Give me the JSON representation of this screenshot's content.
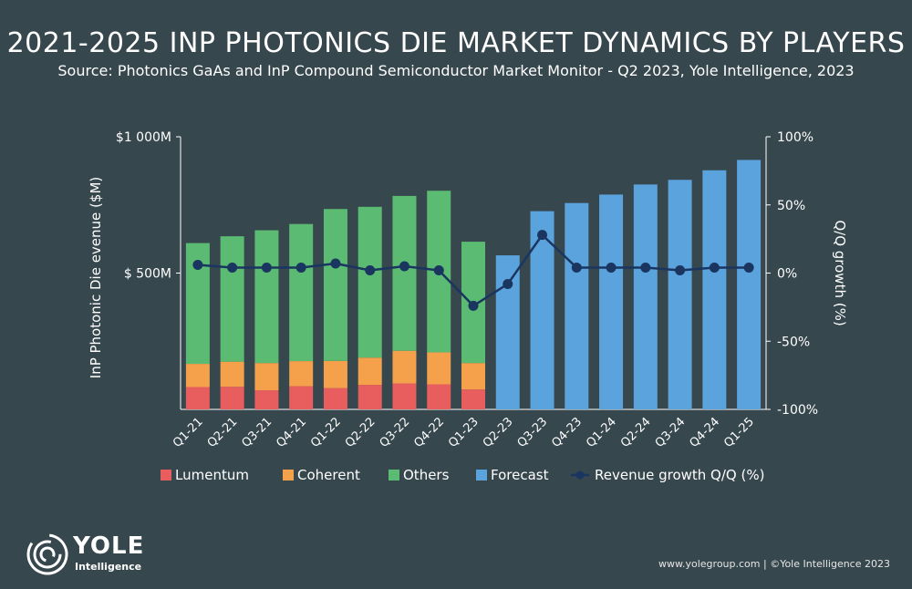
{
  "title": "2021-2025 INP PHOTONICS DIE MARKET DYNAMICS BY PLAYERS",
  "subtitle": "Source: Photonics GaAs and InP Compound Semiconductor Market Monitor - Q2 2023, Yole Intelligence, 2023",
  "logo": {
    "word": "YOLE",
    "sub": "Intelligence"
  },
  "footer": "www.yolegroup.com | ©Yole Intelligence 2023",
  "colors": {
    "background": "#37474e",
    "lumentum": "#e85d5d",
    "coherent": "#f5a04a",
    "others": "#5cbb72",
    "forecast": "#5ba3dc",
    "growth_line": "#1a3560"
  },
  "chart_data": {
    "type": "bar",
    "stacked": true,
    "categories": [
      "Q1-21",
      "Q2-21",
      "Q3-21",
      "Q4-21",
      "Q1-22",
      "Q2-22",
      "Q3-22",
      "Q4-22",
      "Q1-23",
      "Q2-23",
      "Q3-23",
      "Q4-23",
      "Q1-24",
      "Q2-24",
      "Q3-24",
      "Q4-24",
      "Q1-25"
    ],
    "series": [
      {
        "name": "Lumentum",
        "values": [
          82,
          83,
          70,
          85,
          78,
          90,
          95,
          92,
          73,
          null,
          null,
          null,
          null,
          null,
          null,
          null,
          null
        ]
      },
      {
        "name": "Coherent",
        "values": [
          85,
          92,
          100,
          92,
          100,
          100,
          120,
          117,
          97,
          null,
          null,
          null,
          null,
          null,
          null,
          null,
          null
        ]
      },
      {
        "name": "Others",
        "values": [
          443,
          460,
          487,
          503,
          557,
          553,
          568,
          593,
          445,
          null,
          null,
          null,
          null,
          null,
          null,
          null,
          null
        ]
      },
      {
        "name": "Forecast",
        "values": [
          null,
          null,
          null,
          null,
          null,
          null,
          null,
          null,
          null,
          565,
          727,
          757,
          788,
          825,
          842,
          877,
          915
        ]
      }
    ],
    "secondary_series": {
      "name": "Revenue growth Q/Q (%)",
      "type": "line",
      "values": [
        6,
        4,
        4,
        4,
        7,
        2,
        5,
        2,
        -24,
        -8,
        28,
        4,
        4,
        4,
        2,
        4,
        4
      ]
    },
    "ylabel": "InP Photonic Die evenue ($M)",
    "y2label": "Q/Q growth (%)",
    "ylim": [
      0,
      1000
    ],
    "y2lim": [
      -100,
      100
    ],
    "y_ticks": [
      {
        "value": 500,
        "label": "$ 500M"
      },
      {
        "value": 1000,
        "label": "$1 000M"
      }
    ],
    "y2_ticks": [
      {
        "value": 100,
        "label": "100%"
      },
      {
        "value": 50,
        "label": "50%"
      },
      {
        "value": 0,
        "label": "0%"
      },
      {
        "value": -50,
        "label": "-50%"
      },
      {
        "value": -100,
        "label": "-100%"
      }
    ],
    "legend": [
      "Lumentum",
      "Coherent",
      "Others",
      "Forecast",
      "Revenue growth Q/Q (%)"
    ],
    "legend_position": "bottom",
    "grid": false
  }
}
